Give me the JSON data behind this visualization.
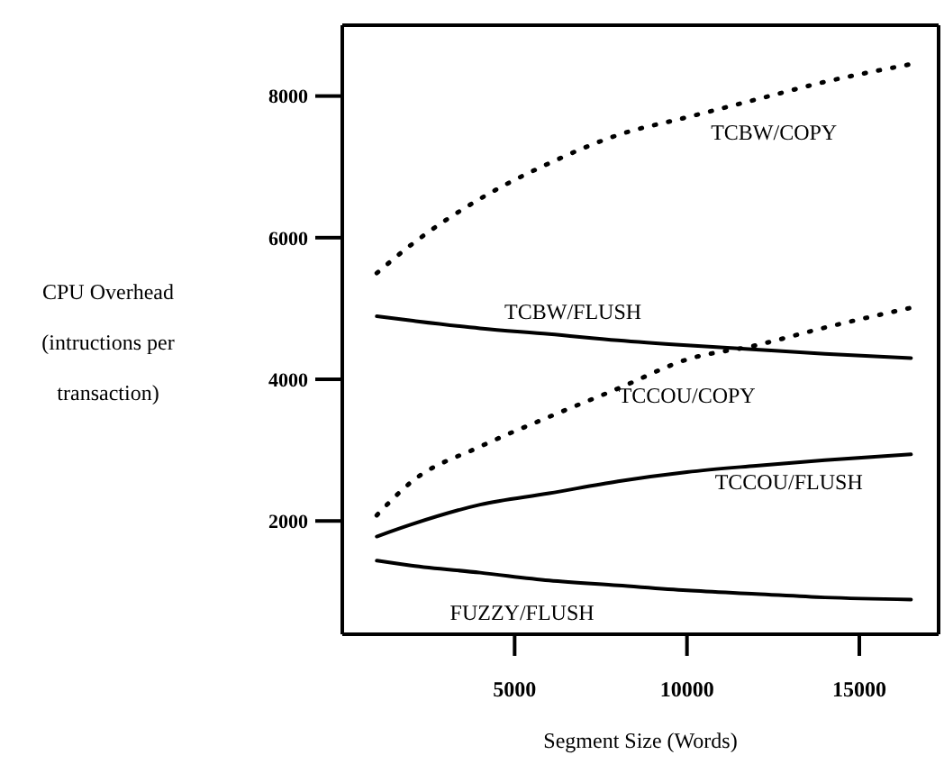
{
  "chart_data": {
    "type": "line",
    "xlabel": "Segment Size (Words)",
    "ylabel": "CPU Overhead (intructions per transaction)",
    "x": [
      1000,
      2000,
      4000,
      6000,
      8000,
      10000,
      12000,
      14000,
      16500
    ],
    "series": [
      {
        "name": "TCBW/COPY",
        "color": "#000000",
        "line_style": "dotted",
        "values": [
          5500,
          5900,
          6550,
          7050,
          7450,
          7700,
          7950,
          8200,
          8450
        ]
      },
      {
        "name": "TCBW/FLUSH",
        "color": "#000000",
        "line_style": "solid",
        "values": [
          4890,
          4830,
          4720,
          4640,
          4550,
          4480,
          4420,
          4360,
          4300
        ]
      },
      {
        "name": "TCCOU/COPY",
        "color": "#000000",
        "line_style": "dotted",
        "values": [
          2080,
          2550,
          3050,
          3470,
          3870,
          4280,
          4480,
          4730,
          5010
        ]
      },
      {
        "name": "TCCOU/FLUSH",
        "color": "#000000",
        "line_style": "solid",
        "values": [
          1780,
          1950,
          2230,
          2390,
          2560,
          2690,
          2780,
          2860,
          2940
        ]
      },
      {
        "name": "FUZZY/FLUSH",
        "color": "#000000",
        "line_style": "solid",
        "values": [
          1440,
          1370,
          1270,
          1160,
          1090,
          1020,
          970,
          920,
          890
        ]
      }
    ],
    "xlim": [
      0,
      17300
    ],
    "xticks": [
      5000,
      10000,
      15000
    ],
    "ylim": [
      400,
      9000
    ],
    "yticks": [
      2000,
      4000,
      6000,
      8000
    ],
    "grid": false,
    "legend": false,
    "marker": "none"
  }
}
